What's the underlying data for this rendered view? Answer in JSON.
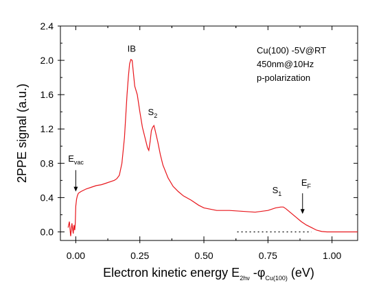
{
  "chart_data": {
    "type": "line",
    "xlabel": "Electron kinetic energy E",
    "xlabel_sub1": "2hν",
    "xlabel_mid": " -φ",
    "xlabel_sub2": "Cu(100)",
    "xlabel_end": " (eV)",
    "ylabel": "2PPE signal (a.u.)",
    "xlim": [
      -0.06,
      1.1
    ],
    "ylim": [
      -0.1,
      2.4
    ],
    "x_ticks": [
      0.0,
      0.25,
      0.5,
      0.75,
      1.0
    ],
    "x_tick_labels": [
      "0.00",
      "0.25",
      "0.50",
      "0.75",
      "1.00"
    ],
    "y_ticks": [
      0.0,
      0.4,
      0.8,
      1.2,
      1.6,
      2.0,
      2.4
    ],
    "y_tick_labels": [
      "0.0",
      "0.4",
      "0.8",
      "1.2",
      "1.6",
      "2.0",
      "2.4"
    ],
    "grid": false,
    "series": [
      {
        "color": "#e8141a",
        "x": [
          -0.03,
          -0.025,
          -0.02,
          -0.015,
          -0.01,
          -0.007,
          -0.004,
          -0.002,
          0.0,
          0.003,
          0.006,
          0.01,
          0.02,
          0.04,
          0.06,
          0.08,
          0.1,
          0.12,
          0.14,
          0.15,
          0.16,
          0.17,
          0.18,
          0.19,
          0.2,
          0.205,
          0.21,
          0.215,
          0.22,
          0.225,
          0.23,
          0.24,
          0.25,
          0.26,
          0.27,
          0.28,
          0.285,
          0.29,
          0.295,
          0.3,
          0.305,
          0.31,
          0.32,
          0.33,
          0.34,
          0.36,
          0.38,
          0.4,
          0.42,
          0.45,
          0.48,
          0.5,
          0.55,
          0.6,
          0.65,
          0.7,
          0.75,
          0.78,
          0.8,
          0.81,
          0.82,
          0.84,
          0.86,
          0.88,
          0.9,
          0.92,
          0.94,
          0.96,
          0.98,
          1.0,
          1.05,
          1.1
        ],
        "y": [
          0.05,
          0.12,
          -0.05,
          0.1,
          -0.02,
          0.08,
          0.02,
          0.1,
          0.3,
          0.38,
          0.42,
          0.45,
          0.47,
          0.5,
          0.52,
          0.54,
          0.55,
          0.57,
          0.59,
          0.6,
          0.62,
          0.66,
          0.8,
          1.1,
          1.6,
          1.8,
          1.96,
          2.01,
          2.0,
          1.85,
          1.7,
          1.6,
          1.4,
          1.22,
          1.1,
          0.98,
          0.95,
          1.05,
          1.18,
          1.22,
          1.24,
          1.18,
          1.05,
          0.9,
          0.78,
          0.63,
          0.53,
          0.47,
          0.42,
          0.37,
          0.31,
          0.28,
          0.25,
          0.25,
          0.24,
          0.23,
          0.25,
          0.28,
          0.29,
          0.29,
          0.27,
          0.22,
          0.17,
          0.12,
          0.08,
          0.05,
          0.02,
          0.005,
          0.0,
          0.0,
          0.0,
          0.0
        ]
      }
    ],
    "dotted_baseline": {
      "x": [
        0.63,
        0.92
      ],
      "y": 0.0
    },
    "annotations": {
      "ib": "IB",
      "s2": "S",
      "s2_sub": "2",
      "s1": "S",
      "s1_sub": "1",
      "evac": "E",
      "evac_sub": "vac",
      "ef": "E",
      "ef_sub": "F",
      "info_line1": "Cu(100) -5V@RT",
      "info_line2": "450nm@10Hz",
      "info_line3": "p-polarization"
    }
  }
}
